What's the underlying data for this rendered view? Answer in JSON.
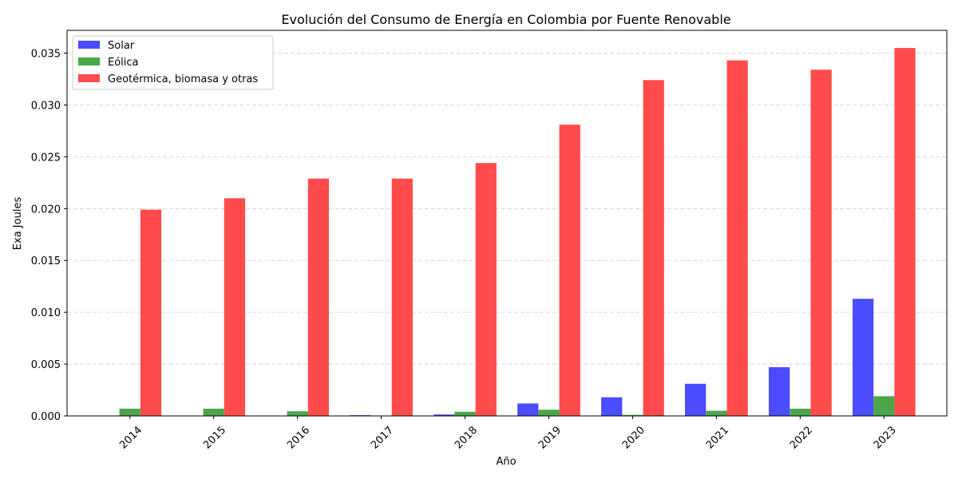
{
  "chart_data": {
    "type": "bar",
    "title": "Evolución del Consumo de Energía en Colombia por Fuente Renovable",
    "xlabel": "Año",
    "ylabel": "Exa Joules",
    "categories": [
      "2014",
      "2015",
      "2016",
      "2017",
      "2018",
      "2019",
      "2020",
      "2021",
      "2022",
      "2023"
    ],
    "series": [
      {
        "name": "Solar",
        "color": "#4b4bff",
        "values": [
          0.0,
          0.0,
          0.0,
          7e-05,
          0.00014,
          0.0012,
          0.0018,
          0.0031,
          0.0047,
          0.0113
        ]
      },
      {
        "name": "Eólica",
        "color": "#4ba64b",
        "values": [
          0.0007,
          0.0007,
          0.00045,
          2e-05,
          0.0004,
          0.0006,
          0.0001,
          0.0005,
          0.0007,
          0.0019
        ]
      },
      {
        "name": "Geotérmica, biomasa y otras",
        "color": "#ff4b4b",
        "values": [
          0.0199,
          0.021,
          0.0229,
          0.0229,
          0.0244,
          0.0281,
          0.0324,
          0.0343,
          0.0334,
          0.0355
        ]
      }
    ],
    "ylim": [
      0,
      0.0372
    ],
    "yticks": [
      "0.000",
      "0.005",
      "0.010",
      "0.015",
      "0.020",
      "0.025",
      "0.030",
      "0.035"
    ],
    "grid": "y-dashed",
    "legend_position": "top-left"
  }
}
